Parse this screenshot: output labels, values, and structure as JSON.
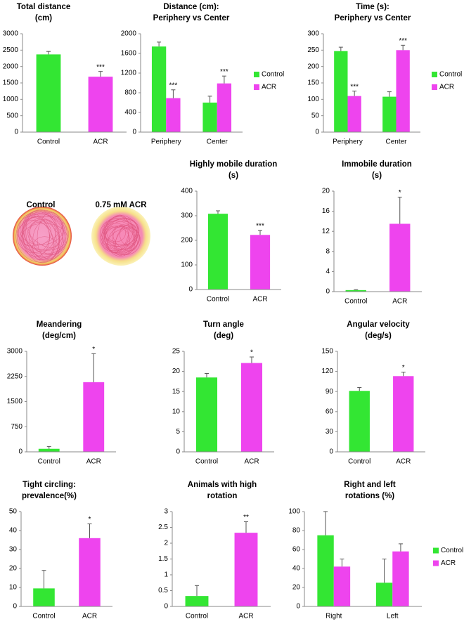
{
  "chart_data": [
    {
      "type": "bar",
      "title": [
        "Total distance",
        "(cm)"
      ],
      "categories": [
        "Control",
        "ACR"
      ],
      "values": [
        2370,
        1690
      ],
      "errors": [
        90,
        160
      ],
      "stars": [
        null,
        "***"
      ],
      "colors": [
        "#33e633",
        "#ee44ee"
      ],
      "ylim": [
        0,
        3000
      ],
      "yticks": [
        0,
        500,
        1000,
        1500,
        2000,
        2500,
        3000
      ]
    },
    {
      "type": "bar",
      "title": [
        "Distance (cm):",
        "Periphery vs Center"
      ],
      "categories": [
        "Periphery",
        "Center"
      ],
      "series": [
        {
          "name": "Control",
          "color": "#33e633",
          "values": [
            1740,
            600
          ],
          "errors": [
            90,
            130
          ],
          "stars": [
            null,
            null
          ]
        },
        {
          "name": "ACR",
          "color": "#ee44ee",
          "values": [
            690,
            990
          ],
          "errors": [
            170,
            150
          ],
          "stars": [
            "***",
            "***"
          ]
        }
      ],
      "ylim": [
        0,
        2000
      ],
      "yticks": [
        0,
        400,
        800,
        1200,
        1600,
        2000
      ],
      "legend": "right"
    },
    {
      "type": "bar",
      "title": [
        "Time (s):",
        "Periphery vs Center"
      ],
      "categories": [
        "Periphery",
        "Center"
      ],
      "series": [
        {
          "name": "Control",
          "color": "#33e633",
          "values": [
            247,
            108
          ],
          "errors": [
            12,
            15
          ],
          "stars": [
            null,
            null
          ]
        },
        {
          "name": "ACR",
          "color": "#ee44ee",
          "values": [
            110,
            250
          ],
          "errors": [
            15,
            15
          ],
          "stars": [
            "***",
            "***"
          ]
        }
      ],
      "ylim": [
        0,
        300
      ],
      "yticks": [
        0,
        50,
        100,
        150,
        200,
        250,
        300
      ],
      "legend": "right"
    },
    {
      "type": "bar",
      "title": [
        "Highly mobile duration",
        "(s)"
      ],
      "categories": [
        "Control",
        "ACR"
      ],
      "values": [
        308,
        222
      ],
      "errors": [
        12,
        18
      ],
      "stars": [
        null,
        "***"
      ],
      "colors": [
        "#33e633",
        "#ee44ee"
      ],
      "ylim": [
        0,
        400
      ],
      "yticks": [
        0,
        100,
        200,
        300,
        400
      ]
    },
    {
      "type": "bar",
      "title": [
        "Immobile duration",
        "(s)"
      ],
      "categories": [
        "Control",
        "ACR"
      ],
      "values": [
        0.3,
        13.5
      ],
      "errors": [
        0.1,
        5.3
      ],
      "stars": [
        null,
        "*"
      ],
      "colors": [
        "#33e633",
        "#ee44ee"
      ],
      "ylim": [
        0,
        20
      ],
      "yticks": [
        0,
        4,
        8,
        12,
        16,
        20
      ]
    },
    {
      "type": "bar",
      "title": [
        "Meandering",
        "(deg/cm)"
      ],
      "categories": [
        "Control",
        "ACR"
      ],
      "values": [
        90,
        2080
      ],
      "errors": [
        70,
        850
      ],
      "stars": [
        null,
        "*"
      ],
      "colors": [
        "#33e633",
        "#ee44ee"
      ],
      "ylim": [
        0,
        3000
      ],
      "yticks": [
        0,
        750,
        1500,
        2250,
        3000
      ]
    },
    {
      "type": "bar",
      "title": [
        "Turn angle",
        "(deg)"
      ],
      "categories": [
        "Control",
        "ACR"
      ],
      "values": [
        18.5,
        22.1
      ],
      "errors": [
        1,
        1.5
      ],
      "stars": [
        null,
        "*"
      ],
      "colors": [
        "#33e633",
        "#ee44ee"
      ],
      "ylim": [
        0,
        25
      ],
      "yticks": [
        0,
        5,
        10,
        15,
        20,
        25
      ]
    },
    {
      "type": "bar",
      "title": [
        "Angular velocity",
        "(deg/s)"
      ],
      "categories": [
        "Control",
        "ACR"
      ],
      "values": [
        91,
        113
      ],
      "errors": [
        5,
        6
      ],
      "stars": [
        null,
        "*"
      ],
      "colors": [
        "#33e633",
        "#ee44ee"
      ],
      "ylim": [
        0,
        150
      ],
      "yticks": [
        0,
        30,
        60,
        90,
        120,
        150
      ]
    },
    {
      "type": "bar",
      "title": [
        "Tight circling:",
        "prevalence(%)"
      ],
      "categories": [
        "Control",
        "ACR"
      ],
      "values": [
        9.5,
        36
      ],
      "errors": [
        9.5,
        7.5
      ],
      "stars": [
        null,
        "*"
      ],
      "colors": [
        "#33e633",
        "#ee44ee"
      ],
      "ylim": [
        0,
        50
      ],
      "yticks": [
        0,
        10,
        20,
        30,
        40,
        50
      ]
    },
    {
      "type": "bar",
      "title": [
        "Animals with high",
        "rotation"
      ],
      "categories": [
        "Control",
        "ACR"
      ],
      "values": [
        0.33,
        2.33
      ],
      "errors": [
        0.33,
        0.35
      ],
      "stars": [
        null,
        "**"
      ],
      "colors": [
        "#33e633",
        "#ee44ee"
      ],
      "ylim": [
        0,
        3
      ],
      "yticks": [
        0,
        0.5,
        1,
        1.5,
        2,
        2.5,
        3
      ]
    },
    {
      "type": "bar",
      "title": [
        "Right and left",
        "rotations (%)"
      ],
      "categories": [
        "Right",
        "Left"
      ],
      "series": [
        {
          "name": "Control",
          "color": "#33e633",
          "values": [
            75,
            25
          ],
          "errors": [
            25,
            25
          ],
          "stars": [
            null,
            null
          ]
        },
        {
          "name": "ACR",
          "color": "#ee44ee",
          "values": [
            42,
            58
          ],
          "errors": [
            8,
            8
          ],
          "stars": [
            null,
            null
          ]
        }
      ],
      "ylim": [
        0,
        100
      ],
      "yticks": [
        0,
        20,
        40,
        60,
        80,
        100
      ],
      "legend": "right"
    }
  ],
  "tracking_panel": {
    "labels": [
      "Control",
      "0.75 mM ACR"
    ]
  }
}
